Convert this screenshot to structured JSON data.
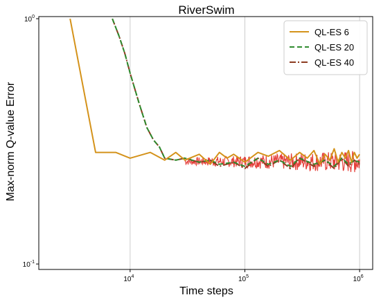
{
  "chart_data": {
    "type": "line",
    "title": "RiverSwim",
    "xlabel": "Time steps",
    "ylabel": "Max-norm Q-value Error",
    "x_scale": "log",
    "y_scale": "log",
    "xlim": [
      1600,
      1300000
    ],
    "ylim": [
      0.095,
      1.02
    ],
    "x_ticks": [
      {
        "value": 10000,
        "base": "10",
        "exp": "4"
      },
      {
        "value": 100000,
        "base": "10",
        "exp": "5"
      },
      {
        "value": 1000000,
        "base": "10",
        "exp": "6"
      }
    ],
    "y_ticks": [
      {
        "value": 1,
        "base": "10",
        "exp": "0"
      },
      {
        "value": 0.1,
        "base": "10",
        "exp": "-1"
      }
    ],
    "grid": "vertical",
    "legend_position": "top-right",
    "series": [
      {
        "name": "QL-ES 6",
        "color": "#d4921a",
        "dash": "solid",
        "x": [
          3000,
          5000,
          7500,
          10000,
          15000,
          20000,
          25000,
          30000,
          40000,
          50000,
          60000,
          70000,
          80000,
          100000,
          130000,
          160000,
          200000,
          250000,
          300000,
          350000,
          400000,
          450000,
          500000,
          550000,
          600000,
          650000,
          700000,
          750000,
          800000,
          850000,
          900000,
          950000,
          1000000
        ],
        "y": [
          1.0,
          0.285,
          0.285,
          0.27,
          0.285,
          0.265,
          0.285,
          0.265,
          0.28,
          0.255,
          0.285,
          0.27,
          0.28,
          0.26,
          0.285,
          0.275,
          0.29,
          0.265,
          0.285,
          0.27,
          0.29,
          0.255,
          0.28,
          0.265,
          0.295,
          0.26,
          0.285,
          0.27,
          0.29,
          0.26,
          0.285,
          0.27,
          0.28
        ]
      },
      {
        "name": "QL-ES 20",
        "color": "#2e8b2e",
        "dash": "dashed",
        "x": [
          7000,
          8000,
          9000,
          10000,
          12000,
          14000,
          16000,
          18000,
          20000,
          25000,
          30000,
          40000,
          50000,
          60000,
          80000,
          100000,
          130000,
          160000,
          200000,
          250000,
          300000,
          400000,
          500000,
          600000,
          700000,
          800000,
          900000,
          1000000
        ],
        "y": [
          1.0,
          0.85,
          0.72,
          0.6,
          0.45,
          0.36,
          0.32,
          0.3,
          0.27,
          0.265,
          0.27,
          0.26,
          0.265,
          0.255,
          0.26,
          0.25,
          0.27,
          0.255,
          0.265,
          0.25,
          0.27,
          0.255,
          0.265,
          0.25,
          0.27,
          0.255,
          0.265,
          0.26
        ]
      },
      {
        "name": "QL-ES 40",
        "color": "#8b3a1e",
        "dash": "dashdot",
        "x": [
          7000,
          8000,
          9000,
          10000,
          12000,
          14000,
          16000,
          18000,
          20000,
          25000,
          30000,
          40000,
          50000,
          60000,
          80000,
          100000,
          130000,
          160000,
          200000,
          250000,
          300000,
          400000,
          500000,
          600000,
          700000,
          800000,
          900000,
          1000000
        ],
        "y": [
          1.0,
          0.85,
          0.72,
          0.6,
          0.45,
          0.36,
          0.32,
          0.3,
          0.27,
          0.265,
          0.27,
          0.26,
          0.265,
          0.25,
          0.26,
          0.245,
          0.27,
          0.25,
          0.265,
          0.245,
          0.27,
          0.25,
          0.265,
          0.245,
          0.27,
          0.25,
          0.265,
          0.255
        ]
      }
    ],
    "noise_band": {
      "name": "fluctuation",
      "color": "#e0201a",
      "x_start": 30000,
      "x_end": 1000000,
      "y_center": 0.262,
      "spread": 0.022
    }
  }
}
